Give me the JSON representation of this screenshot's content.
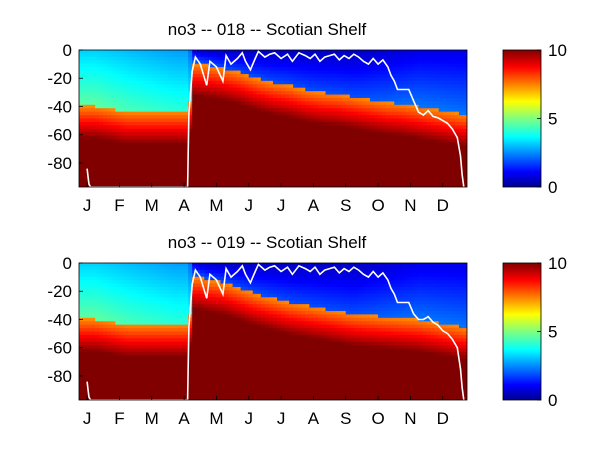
{
  "chart_data": [
    {
      "type": "heatmap",
      "title": "no3 -- 018 -- Scotian Shelf",
      "x_tick_labels": [
        "J",
        "F",
        "M",
        "A",
        "M",
        "J",
        "J",
        "A",
        "S",
        "O",
        "N",
        "D"
      ],
      "y_tick_labels": [
        "0",
        "-20",
        "-40",
        "-60",
        "-80"
      ],
      "y_ticks": [
        0,
        -20,
        -40,
        -60,
        -80
      ],
      "xlim": [
        0,
        12
      ],
      "ylim": [
        -97,
        0
      ],
      "colorbar": {
        "ticks": [
          0,
          5,
          10
        ],
        "tick_labels": [
          "0",
          "5",
          "10"
        ],
        "range": [
          0,
          10
        ],
        "colormap": "jet"
      },
      "field": {
        "months_x": [
          0.0,
          0.5,
          1.0,
          1.5,
          2.0,
          2.5,
          3.0,
          3.4,
          3.55,
          3.7,
          4.0,
          4.5,
          5.0,
          5.5,
          6.0,
          6.5,
          7.0,
          7.5,
          8.0,
          8.5,
          9.0,
          9.5,
          10.0,
          10.5,
          11.0,
          11.5,
          12.0
        ],
        "nitracline_depth": [
          40,
          40,
          42,
          44,
          44,
          44,
          44,
          44,
          10,
          10,
          11,
          13,
          16,
          20,
          23,
          25,
          28,
          30,
          31,
          33,
          35,
          37,
          38,
          40,
          42,
          44,
          46
        ],
        "surface_value": [
          3.3,
          3.3,
          3.2,
          3.1,
          3.0,
          2.9,
          2.8,
          2.8,
          1.0,
          0.8,
          0.7,
          0.6,
          0.6,
          0.6,
          0.6,
          0.6,
          0.6,
          0.6,
          0.6,
          0.6,
          0.7,
          0.8,
          0.9,
          1.0,
          1.0,
          1.0,
          1.0
        ]
      },
      "mixed_layer_depth_line": {
        "color": "#ffffff",
        "x": [
          0.25,
          0.28,
          0.31,
          0.36,
          3.36,
          3.4,
          3.5,
          3.6,
          3.75,
          3.95,
          4.05,
          4.25,
          4.45,
          4.55,
          4.7,
          4.9,
          5.05,
          5.15,
          5.3,
          5.45,
          5.55,
          5.75,
          5.9,
          6.05,
          6.25,
          6.45,
          6.6,
          6.8,
          7.0,
          7.15,
          7.3,
          7.45,
          7.6,
          7.75,
          7.9,
          8.05,
          8.2,
          8.35,
          8.5,
          8.65,
          8.8,
          8.95,
          9.1,
          9.25,
          9.4,
          9.55,
          9.65,
          9.75,
          9.85,
          10.0,
          10.2,
          10.35,
          10.5,
          10.65,
          10.8,
          10.95,
          11.1,
          11.25,
          11.4,
          11.55,
          11.7,
          11.8,
          11.85,
          11.9
        ],
        "y": [
          -84,
          -90,
          -95,
          -97,
          -97,
          -45,
          -15,
          -5,
          -10,
          -25,
          -8,
          -12,
          -22,
          -4,
          -10,
          -6,
          -2,
          -8,
          -14,
          -6,
          -1,
          -5,
          -3,
          -2,
          -6,
          -3,
          -8,
          -2,
          -4,
          -6,
          -3,
          -8,
          -5,
          -4,
          -3,
          -7,
          -4,
          -6,
          -3,
          -5,
          -8,
          -10,
          -6,
          -10,
          -7,
          -12,
          -18,
          -22,
          -28,
          -28,
          -28,
          -36,
          -44,
          -46,
          -43,
          -47,
          -48,
          -50,
          -52,
          -56,
          -62,
          -75,
          -88,
          -97
        ]
      }
    },
    {
      "type": "heatmap",
      "title": "no3 -- 019 -- Scotian Shelf",
      "x_tick_labels": [
        "J",
        "F",
        "M",
        "A",
        "M",
        "J",
        "J",
        "A",
        "S",
        "O",
        "N",
        "D"
      ],
      "y_tick_labels": [
        "0",
        "-20",
        "-40",
        "-60",
        "-80"
      ],
      "y_ticks": [
        0,
        -20,
        -40,
        -60,
        -80
      ],
      "xlim": [
        0,
        12
      ],
      "ylim": [
        -97,
        0
      ],
      "colorbar": {
        "ticks": [
          0,
          5,
          10
        ],
        "tick_labels": [
          "0",
          "5",
          "10"
        ],
        "range": [
          0,
          10
        ],
        "colormap": "jet"
      },
      "field": {
        "months_x": [
          0.0,
          0.5,
          1.0,
          1.5,
          2.0,
          2.5,
          3.0,
          3.4,
          3.55,
          3.7,
          4.0,
          4.5,
          5.0,
          5.5,
          6.0,
          6.5,
          7.0,
          7.5,
          8.0,
          8.5,
          9.0,
          9.5,
          10.0,
          10.5,
          11.0,
          11.5,
          12.0
        ],
        "nitracline_depth": [
          40,
          40,
          42,
          44,
          44,
          44,
          44,
          44,
          10,
          10,
          12,
          14,
          18,
          22,
          25,
          28,
          30,
          32,
          34,
          36,
          37,
          38,
          39,
          40,
          42,
          44,
          46
        ],
        "surface_value": [
          3.3,
          3.3,
          3.2,
          3.1,
          3.0,
          2.9,
          2.8,
          2.8,
          1.0,
          0.8,
          0.7,
          0.6,
          0.6,
          0.6,
          0.6,
          0.6,
          0.6,
          0.6,
          0.6,
          0.6,
          0.7,
          0.8,
          0.9,
          1.0,
          1.0,
          1.0,
          1.0
        ]
      },
      "mixed_layer_depth_line": {
        "color": "#ffffff",
        "x": [
          0.25,
          0.28,
          0.31,
          0.36,
          3.36,
          3.4,
          3.5,
          3.6,
          3.75,
          3.95,
          4.05,
          4.25,
          4.45,
          4.55,
          4.7,
          4.9,
          5.05,
          5.15,
          5.3,
          5.45,
          5.55,
          5.75,
          5.9,
          6.05,
          6.25,
          6.45,
          6.6,
          6.8,
          7.0,
          7.15,
          7.3,
          7.45,
          7.6,
          7.75,
          7.9,
          8.05,
          8.2,
          8.35,
          8.5,
          8.65,
          8.8,
          8.95,
          9.1,
          9.25,
          9.4,
          9.55,
          9.65,
          9.75,
          9.85,
          10.0,
          10.2,
          10.35,
          10.5,
          10.65,
          10.8,
          10.95,
          11.1,
          11.25,
          11.4,
          11.55,
          11.7,
          11.8,
          11.85,
          11.9
        ],
        "y": [
          -84,
          -90,
          -95,
          -97,
          -97,
          -45,
          -15,
          -5,
          -10,
          -25,
          -8,
          -12,
          -22,
          -4,
          -10,
          -6,
          -2,
          -8,
          -14,
          -6,
          -1,
          -5,
          -3,
          -2,
          -6,
          -3,
          -8,
          -2,
          -4,
          -6,
          -3,
          -8,
          -5,
          -4,
          -3,
          -7,
          -4,
          -6,
          -3,
          -5,
          -8,
          -10,
          -6,
          -10,
          -7,
          -12,
          -18,
          -22,
          -28,
          -28,
          -28,
          -36,
          -40,
          -40,
          -38,
          -42,
          -44,
          -48,
          -50,
          -54,
          -60,
          -75,
          -88,
          -97
        ]
      }
    }
  ]
}
